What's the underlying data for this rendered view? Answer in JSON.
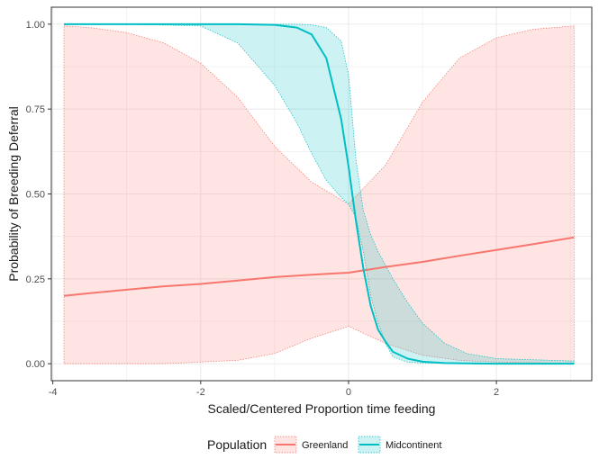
{
  "chart_data": {
    "type": "line",
    "title": "",
    "xlabel": "Scaled/Centered Proportion time feeding",
    "ylabel": "Probability of Breeding Deferral",
    "xlim": [
      -4.02,
      3.29
    ],
    "ylim": [
      -0.05,
      1.05
    ],
    "x_ticks": [
      -4,
      -2,
      0,
      2
    ],
    "x_tick_labels": [
      "-4",
      "-2",
      "0",
      "2"
    ],
    "y_ticks": [
      0,
      0.25,
      0.5,
      0.75,
      1.0
    ],
    "y_tick_labels": [
      "0.00",
      "0.25",
      "0.50",
      "0.75",
      "1.00"
    ],
    "grid": true,
    "legend": {
      "title": "Population",
      "position": "bottom"
    },
    "series": [
      {
        "name": "Greenland",
        "color": "#F8766D",
        "fill": "#F8766D",
        "x": [
          -3.85,
          -3.5,
          -3.0,
          -2.5,
          -2.0,
          -1.5,
          -1.0,
          -0.5,
          0.0,
          0.5,
          1.0,
          1.5,
          2.0,
          2.5,
          3.05
        ],
        "y": [
          0.2,
          0.208,
          0.218,
          0.228,
          0.235,
          0.245,
          0.255,
          0.262,
          0.268,
          0.285,
          0.3,
          0.318,
          0.335,
          0.352,
          0.372
        ],
        "lower": [
          0.0,
          0.0,
          0.0,
          0.0,
          0.005,
          0.01,
          0.03,
          0.075,
          0.11,
          0.06,
          0.025,
          0.01,
          0.005,
          0.003,
          0.0
        ],
        "upper": [
          0.995,
          0.99,
          0.975,
          0.945,
          0.885,
          0.785,
          0.64,
          0.535,
          0.47,
          0.585,
          0.77,
          0.9,
          0.96,
          0.985,
          0.995
        ]
      },
      {
        "name": "Midcontinent",
        "color": "#00BFC4",
        "fill": "#00BFC4",
        "x": [
          -3.85,
          -3.0,
          -2.0,
          -1.5,
          -1.0,
          -0.7,
          -0.5,
          -0.3,
          -0.1,
          0.0,
          0.1,
          0.2,
          0.3,
          0.4,
          0.5,
          0.6,
          0.8,
          1.0,
          1.3,
          1.6,
          2.0,
          3.05
        ],
        "y": [
          1.0,
          1.0,
          1.0,
          1.0,
          0.998,
          0.99,
          0.97,
          0.9,
          0.72,
          0.58,
          0.42,
          0.28,
          0.17,
          0.1,
          0.065,
          0.035,
          0.015,
          0.006,
          0.002,
          0.001,
          0.0,
          0.0
        ],
        "lower": [
          1.0,
          1.0,
          0.995,
          0.945,
          0.82,
          0.71,
          0.62,
          0.54,
          0.49,
          0.47,
          0.43,
          0.33,
          0.2,
          0.12,
          0.06,
          0.02,
          0.005,
          0.002,
          0.001,
          0.0,
          0.0,
          0.0
        ],
        "upper": [
          1.0,
          1.0,
          1.0,
          1.0,
          1.0,
          1.0,
          0.998,
          0.99,
          0.95,
          0.85,
          0.6,
          0.45,
          0.38,
          0.33,
          0.29,
          0.25,
          0.18,
          0.12,
          0.06,
          0.03,
          0.015,
          0.008
        ]
      }
    ]
  }
}
